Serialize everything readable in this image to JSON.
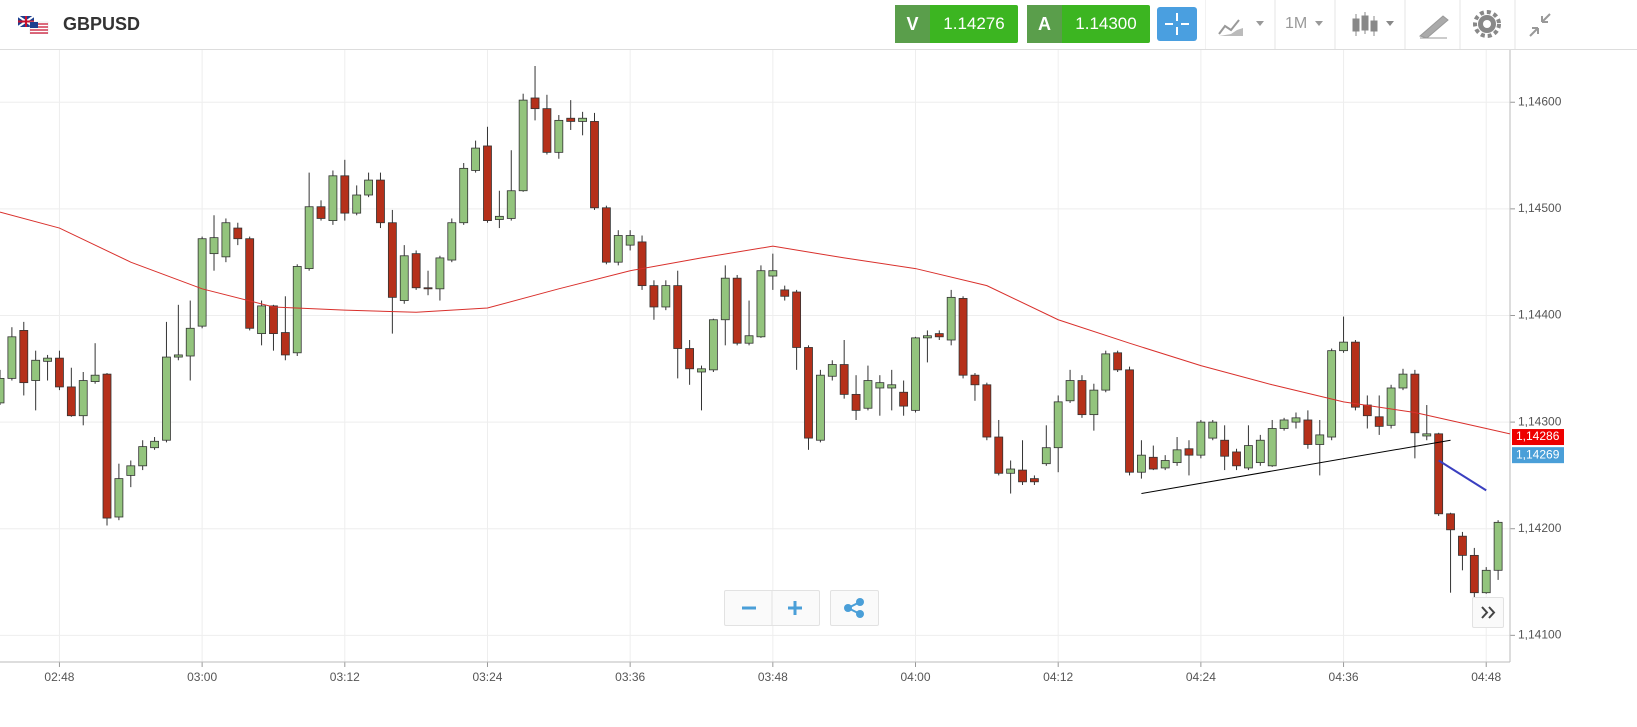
{
  "header": {
    "symbol": "GBPUSD",
    "sell_label": "V",
    "sell_price": "1.14276",
    "buy_label": "A",
    "buy_price": "1.14300",
    "timeframe": "1M"
  },
  "chart_data": {
    "type": "candlestick",
    "up_color": "#93c47d",
    "down_color": "#b5301a",
    "x": [
      "02:43",
      "02:44",
      "02:45",
      "02:46",
      "02:47",
      "02:48",
      "02:49",
      "02:50",
      "02:51",
      "02:52",
      "02:53",
      "02:54",
      "02:55",
      "02:56",
      "02:57",
      "02:58",
      "02:59",
      "03:00",
      "03:01",
      "03:02",
      "03:03",
      "03:04",
      "03:05",
      "03:06",
      "03:07",
      "03:08",
      "03:09",
      "03:10",
      "03:11",
      "03:12",
      "03:13",
      "03:14",
      "03:15",
      "03:16",
      "03:17",
      "03:18",
      "03:19",
      "03:20",
      "03:21",
      "03:22",
      "03:23",
      "03:24",
      "03:25",
      "03:26",
      "03:27",
      "03:28",
      "03:29",
      "03:30",
      "03:31",
      "03:32",
      "03:33",
      "03:34",
      "03:35",
      "03:36",
      "03:37",
      "03:38",
      "03:39",
      "03:40",
      "03:41",
      "03:42",
      "03:43",
      "03:44",
      "03:45",
      "03:46",
      "03:47",
      "03:48",
      "03:49",
      "03:50",
      "03:51",
      "03:52",
      "03:53",
      "03:54",
      "03:55",
      "03:56",
      "03:57",
      "03:58",
      "03:59",
      "04:00",
      "04:01",
      "04:02",
      "04:03",
      "04:04",
      "04:05",
      "04:06",
      "04:07",
      "04:08",
      "04:09",
      "04:10",
      "04:11",
      "04:12",
      "04:13",
      "04:14",
      "04:15",
      "04:16",
      "04:17",
      "04:18",
      "04:19",
      "04:20",
      "04:21",
      "04:22",
      "04:23",
      "04:24",
      "04:25",
      "04:26",
      "04:27",
      "04:28",
      "04:29",
      "04:30",
      "04:31",
      "04:32",
      "04:33",
      "04:34",
      "04:35",
      "04:36",
      "04:37",
      "04:38",
      "04:39",
      "04:40",
      "04:41",
      "04:42",
      "04:43",
      "04:44",
      "04:45",
      "04:46",
      "04:47",
      "04:48",
      "04:49"
    ],
    "open": [
      1.14318,
      1.14341,
      1.14386,
      1.14339,
      1.14357,
      1.1436,
      1.14333,
      1.14306,
      1.14338,
      1.14345,
      1.14211,
      1.1425,
      1.14259,
      1.14276,
      1.14283,
      1.14361,
      1.14362,
      1.1439,
      1.14458,
      1.14455,
      1.14482,
      1.14472,
      1.14383,
      1.14409,
      1.14384,
      1.14365,
      1.14444,
      1.14502,
      1.14489,
      1.14531,
      1.14496,
      1.14513,
      1.14527,
      1.14487,
      1.14414,
      1.14458,
      1.14426,
      1.14425,
      1.14452,
      1.14487,
      1.14536,
      1.14559,
      1.1449,
      1.14491,
      1.14517,
      1.14604,
      1.14594,
      1.14553,
      1.14585,
      1.14582,
      1.14582,
      1.14501,
      1.1445,
      1.14466,
      1.14469,
      1.14428,
      1.14408,
      1.14428,
      1.14369,
      1.14347,
      1.14349,
      1.14396,
      1.14435,
      1.14374,
      1.1438,
      1.14437,
      1.14424,
      1.14422,
      1.1437,
      1.14283,
      1.14343,
      1.14354,
      1.14326,
      1.14313,
      1.14332,
      1.14332,
      1.14328,
      1.14311,
      1.14379,
      1.14383,
      1.14377,
      1.14416,
      1.14344,
      1.14335,
      1.14286,
      1.14252,
      1.14255,
      1.14247,
      1.14261,
      1.14276,
      1.1432,
      1.14339,
      1.14307,
      1.1433,
      1.14365,
      1.14349,
      1.14253,
      1.14267,
      1.14257,
      1.14262,
      1.14275,
      1.14269,
      1.14285,
      1.14283,
      1.14272,
      1.14257,
      1.14262,
      1.14259,
      1.14294,
      1.143,
      1.14302,
      1.14279,
      1.14286,
      1.14367,
      1.14375,
      1.14316,
      1.14305,
      1.14297,
      1.14332,
      1.14345,
      1.14287,
      1.14289,
      1.14214,
      1.14193,
      1.14175,
      1.1414,
      1.14161
    ],
    "high": [
      1.14349,
      1.14389,
      1.14394,
      1.14367,
      1.14363,
      1.14367,
      1.14351,
      1.14347,
      1.14374,
      1.14346,
      1.14261,
      1.14264,
      1.14283,
      1.14286,
      1.14394,
      1.1441,
      1.14414,
      1.14474,
      1.14494,
      1.14491,
      1.14487,
      1.14474,
      1.14414,
      1.1441,
      1.14418,
      1.14448,
      1.14534,
      1.14508,
      1.14536,
      1.14546,
      1.14522,
      1.14534,
      1.14534,
      1.14499,
      1.14466,
      1.14461,
      1.14442,
      1.14456,
      1.14491,
      1.14543,
      1.14564,
      1.14577,
      1.14517,
      1.14555,
      1.14608,
      1.14634,
      1.14607,
      1.14588,
      1.14602,
      1.14591,
      1.1459,
      1.14503,
      1.1448,
      1.1448,
      1.14475,
      1.14433,
      1.14433,
      1.14442,
      1.14377,
      1.14353,
      1.14397,
      1.14447,
      1.14438,
      1.14414,
      1.14447,
      1.14458,
      1.14428,
      1.14424,
      1.14372,
      1.14349,
      1.14358,
      1.14377,
      1.14344,
      1.14353,
      1.14344,
      1.14349,
      1.14339,
      1.1438,
      1.14386,
      1.14386,
      1.14424,
      1.14418,
      1.14346,
      1.14337,
      1.14302,
      1.14264,
      1.14283,
      1.1425,
      1.14297,
      1.14325,
      1.14349,
      1.14344,
      1.14336,
      1.14367,
      1.14367,
      1.14352,
      1.14283,
      1.14278,
      1.14269,
      1.14286,
      1.14283,
      1.14302,
      1.14302,
      1.14297,
      1.14275,
      1.14297,
      1.14288,
      1.14302,
      1.14304,
      1.14309,
      1.14311,
      1.14302,
      1.14369,
      1.14399,
      1.14377,
      1.14325,
      1.14325,
      1.14335,
      1.1435,
      1.14349,
      1.14316,
      1.1429,
      1.14215,
      1.14197,
      1.14182,
      1.14164,
      1.14208
    ],
    "low": [
      1.14316,
      1.14339,
      1.14325,
      1.14311,
      1.14339,
      1.1433,
      1.14305,
      1.14297,
      1.14336,
      1.14203,
      1.14208,
      1.14239,
      1.14255,
      1.14274,
      1.14281,
      1.14358,
      1.14339,
      1.14388,
      1.14442,
      1.1445,
      1.14466,
      1.14386,
      1.14372,
      1.14367,
      1.14358,
      1.14362,
      1.14442,
      1.14489,
      1.14485,
      1.14489,
      1.14494,
      1.14511,
      1.14482,
      1.14383,
      1.14411,
      1.14424,
      1.14419,
      1.14414,
      1.1445,
      1.14485,
      1.14534,
      1.14487,
      1.14482,
      1.14489,
      1.14516,
      1.14583,
      1.14551,
      1.14547,
      1.14574,
      1.14569,
      1.14499,
      1.14448,
      1.14447,
      1.14461,
      1.14424,
      1.14396,
      1.14405,
      1.14341,
      1.14335,
      1.14311,
      1.14347,
      1.14372,
      1.14372,
      1.14372,
      1.14379,
      1.14424,
      1.14414,
      1.14349,
      1.14274,
      1.14281,
      1.14339,
      1.14322,
      1.14302,
      1.14311,
      1.14306,
      1.14311,
      1.14306,
      1.14309,
      1.14356,
      1.14377,
      1.14372,
      1.14341,
      1.1432,
      1.14283,
      1.1425,
      1.14233,
      1.14241,
      1.14241,
      1.14259,
      1.14253,
      1.14318,
      1.14304,
      1.14292,
      1.14328,
      1.14347,
      1.1425,
      1.14247,
      1.14255,
      1.14255,
      1.14259,
      1.1425,
      1.14266,
      1.14283,
      1.14255,
      1.14255,
      1.14255,
      1.14259,
      1.14258,
      1.14292,
      1.14294,
      1.14275,
      1.1425,
      1.14283,
      1.14365,
      1.14311,
      1.14294,
      1.14288,
      1.14294,
      1.1433,
      1.14266,
      1.14283,
      1.14212,
      1.1414,
      1.14161,
      1.14135,
      1.14139,
      1.14152
    ],
    "close": [
      1.14341,
      1.1438,
      1.14337,
      1.14358,
      1.1436,
      1.14333,
      1.14306,
      1.14339,
      1.14344,
      1.1421,
      1.14247,
      1.14259,
      1.14277,
      1.14282,
      1.14361,
      1.14363,
      1.14388,
      1.14472,
      1.14473,
      1.14487,
      1.14472,
      1.14388,
      1.14409,
      1.14383,
      1.14363,
      1.14446,
      1.14502,
      1.14491,
      1.14531,
      1.14496,
      1.14513,
      1.14527,
      1.14487,
      1.14417,
      1.14456,
      1.14426,
      1.14425,
      1.14454,
      1.14487,
      1.14538,
      1.14557,
      1.14489,
      1.14493,
      1.14517,
      1.14602,
      1.14594,
      1.14553,
      1.14583,
      1.14582,
      1.14585,
      1.14501,
      1.1445,
      1.14475,
      1.14475,
      1.14428,
      1.14408,
      1.14428,
      1.14369,
      1.1435,
      1.1435,
      1.14396,
      1.14435,
      1.14374,
      1.14381,
      1.14442,
      1.14442,
      1.14418,
      1.1437,
      1.14285,
      1.14344,
      1.14354,
      1.14326,
      1.14311,
      1.14339,
      1.14337,
      1.14335,
      1.14315,
      1.14379,
      1.14381,
      1.1438,
      1.14417,
      1.14344,
      1.14335,
      1.14286,
      1.14252,
      1.14256,
      1.14244,
      1.14244,
      1.14276,
      1.14319,
      1.14339,
      1.14307,
      1.1433,
      1.14364,
      1.14349,
      1.14253,
      1.14269,
      1.14256,
      1.14264,
      1.14274,
      1.14269,
      1.143,
      1.143,
      1.14268,
      1.14259,
      1.14278,
      1.14283,
      1.14294,
      1.14302,
      1.14304,
      1.14279,
      1.14288,
      1.14367,
      1.14375,
      1.14314,
      1.14306,
      1.14296,
      1.14332,
      1.14345,
      1.1429,
      1.14289,
      1.14214,
      1.14199,
      1.14175,
      1.1414,
      1.14161,
      1.14206
    ],
    "overlays": [
      {
        "color": "#d9302c",
        "x": [
          "02:43",
          "02:48",
          "02:54",
          "03:00",
          "03:06",
          "03:12",
          "03:18",
          "03:24",
          "03:30",
          "03:36",
          "03:42",
          "03:48",
          "03:54",
          "04:00",
          "04:06",
          "04:12",
          "04:18",
          "04:24",
          "04:30",
          "04:36",
          "04:42",
          "04:48",
          "04:50"
        ],
        "values": [
          1.14497,
          1.14482,
          1.1445,
          1.14425,
          1.14408,
          1.14405,
          1.14403,
          1.14407,
          1.14425,
          1.14442,
          1.14454,
          1.14465,
          1.14454,
          1.14444,
          1.14428,
          1.14396,
          1.14374,
          1.14353,
          1.14335,
          1.14319,
          1.14309,
          1.14294,
          1.14289
        ]
      },
      {
        "color": "#000000",
        "x": [
          "04:19",
          "04:45"
        ],
        "values": [
          1.14233,
          1.14283
        ]
      },
      {
        "color": "#3a3fc0",
        "x": [
          "04:44",
          "04:48"
        ],
        "values": [
          1.14264,
          1.14236
        ]
      }
    ],
    "price_labels": [
      {
        "value": 1.14286,
        "label": "1,14286",
        "color": "#ee0000"
      },
      {
        "value": 1.14269,
        "label": "1,14269",
        "color": "#4a9fd8"
      }
    ],
    "xlim": [
      "02:43",
      "04:50"
    ],
    "xticks": [
      "02:48",
      "03:00",
      "03:12",
      "03:24",
      "03:36",
      "03:48",
      "04:00",
      "04:12",
      "04:24",
      "04:36",
      "04:48"
    ],
    "ylim": [
      1.14075,
      1.14649
    ],
    "yticks": [
      {
        "value": 1.141,
        "label": "1,14100"
      },
      {
        "value": 1.142,
        "label": "1,14200"
      },
      {
        "value": 1.143,
        "label": "1,14300"
      },
      {
        "value": 1.144,
        "label": "1,14400"
      },
      {
        "value": 1.145,
        "label": "1,14500"
      },
      {
        "value": 1.146,
        "label": "1,14600"
      }
    ],
    "grid": true
  }
}
